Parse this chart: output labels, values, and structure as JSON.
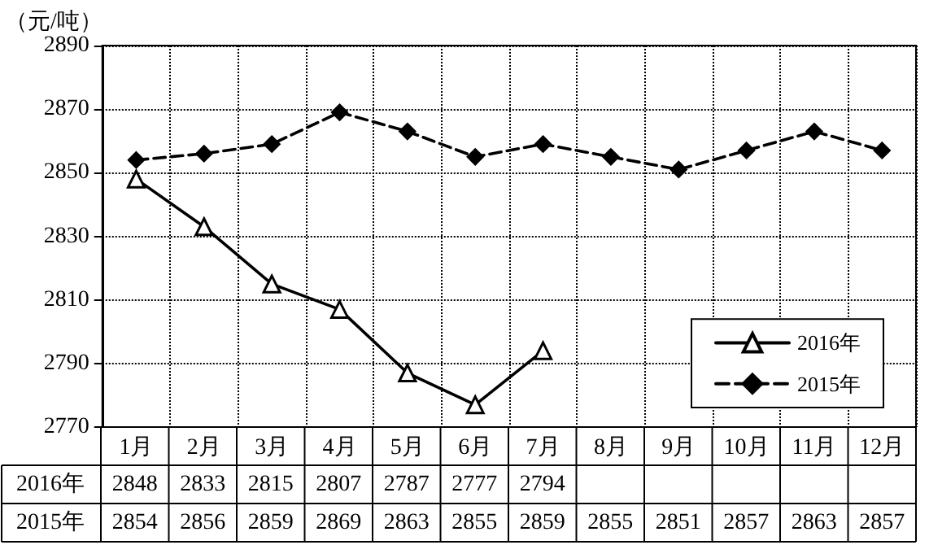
{
  "chart_data": {
    "type": "line",
    "ylabel": "（元/吨）",
    "categories": [
      "1月",
      "2月",
      "3月",
      "4月",
      "5月",
      "6月",
      "7月",
      "8月",
      "9月",
      "10月",
      "11月",
      "12月"
    ],
    "series": [
      {
        "name": "2016年",
        "color": "#000000",
        "marker": "triangle",
        "line_style": "solid",
        "values": [
          2848,
          2833,
          2815,
          2807,
          2787,
          2777,
          2794,
          null,
          null,
          null,
          null,
          null
        ]
      },
      {
        "name": "2015年",
        "color": "#000000",
        "marker": "diamond",
        "line_style": "dashed",
        "values": [
          2854,
          2856,
          2859,
          2869,
          2863,
          2855,
          2859,
          2855,
          2851,
          2857,
          2863,
          2857
        ]
      }
    ],
    "ylim": [
      2770,
      2890
    ],
    "yticks": [
      2770,
      2790,
      2810,
      2830,
      2850,
      2870,
      2890
    ],
    "grid": true,
    "legend": "bottom right",
    "data_labels": true
  }
}
